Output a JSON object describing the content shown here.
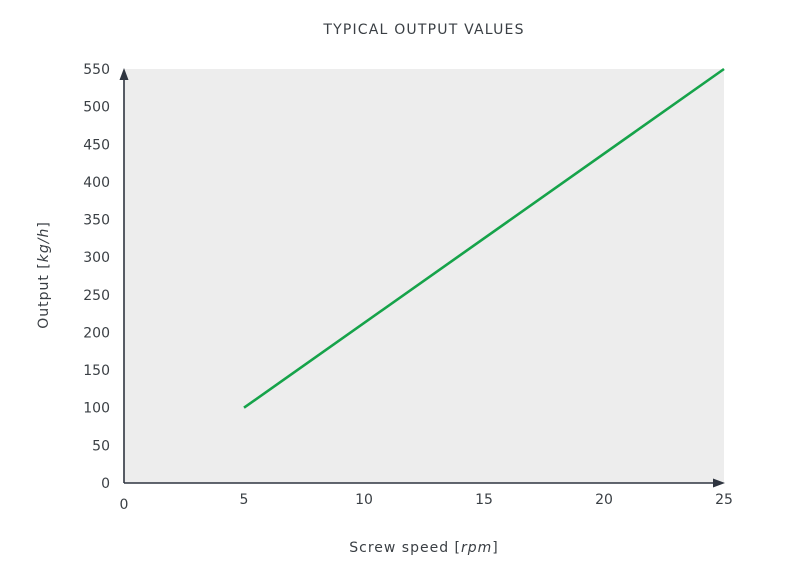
{
  "chart_data": {
    "type": "line",
    "title": "TYPICAL OUTPUT VALUES",
    "xlabel": {
      "prefix": "Screw speed [",
      "unit": "rpm",
      "suffix": "]"
    },
    "ylabel": {
      "prefix": "Output [",
      "unit": "kg/h",
      "suffix": "]"
    },
    "xlim": [
      0,
      25
    ],
    "ylim": [
      0,
      550
    ],
    "xticks": [
      0,
      5,
      10,
      15,
      20,
      25
    ],
    "yticks": [
      0,
      50,
      100,
      150,
      200,
      250,
      300,
      350,
      400,
      450,
      500,
      550
    ],
    "grid": false,
    "series": [
      {
        "x": [
          5,
          25
        ],
        "y": [
          100,
          550
        ],
        "color": "#16a34a"
      }
    ]
  },
  "colors": {
    "plot_background": "#ededed",
    "axis": "#2f3540",
    "text": "#3a3f44"
  }
}
